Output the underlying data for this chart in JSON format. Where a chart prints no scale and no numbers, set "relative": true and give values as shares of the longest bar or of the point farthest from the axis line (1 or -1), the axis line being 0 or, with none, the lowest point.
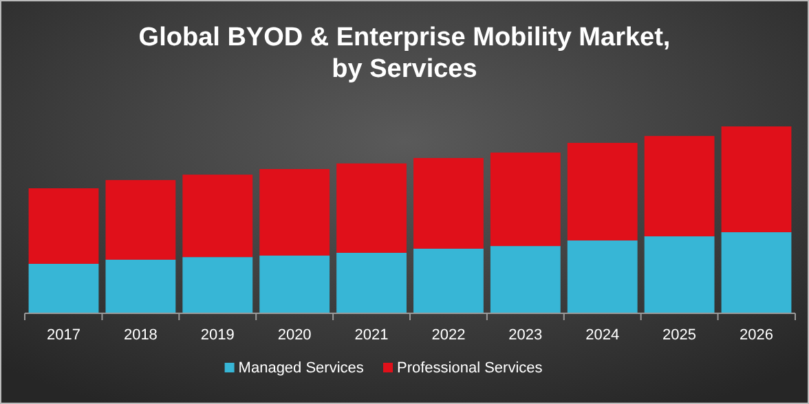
{
  "chart_data": {
    "type": "bar",
    "title": "Global BYOD & Enterprise Mobility Market,\nby Services",
    "categories": [
      "2017",
      "2018",
      "2019",
      "2020",
      "2021",
      "2022",
      "2023",
      "2024",
      "2025",
      "2026"
    ],
    "stacked": true,
    "relative": true,
    "legend": "bottom",
    "series": [
      {
        "name": "Managed Services",
        "color": "#37b6d6",
        "values": [
          0.265,
          0.287,
          0.301,
          0.309,
          0.324,
          0.346,
          0.36,
          0.39,
          0.412,
          0.434
        ]
      },
      {
        "name": "Professional Services",
        "color": "#e0101a",
        "values": [
          0.404,
          0.426,
          0.441,
          0.463,
          0.478,
          0.485,
          0.5,
          0.522,
          0.537,
          0.566
        ]
      }
    ]
  }
}
